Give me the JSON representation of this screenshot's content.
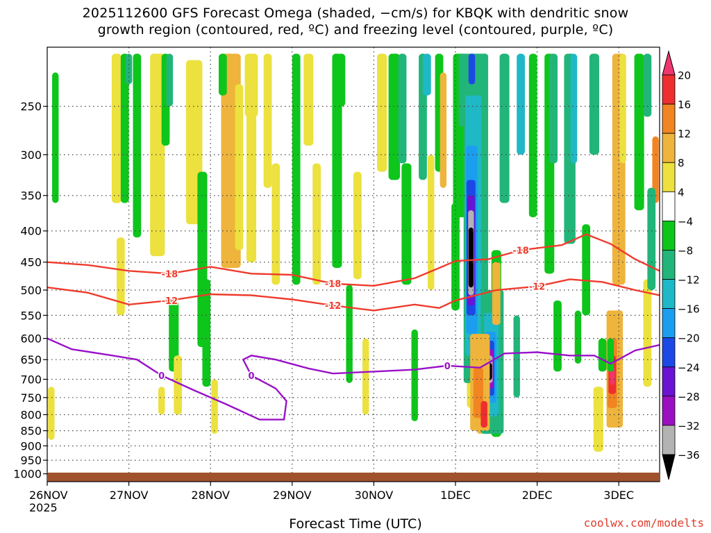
{
  "title_line1": "2025112600 GFS Forecast Omega (shaded, −cm/s) for KBQK with dendritic snow",
  "title_line2": "growth region (contoured, red, ºC) and freezing level (contoured, purple, ºC)",
  "xlabel": "Forecast Time (UTC)",
  "credit": "coolwx.com/modelts",
  "colors": {
    "red_contour": "#ef3b2c",
    "purple_contour": "#9911c8",
    "ground": "#a0522d",
    "grid": "#444444"
  },
  "chart_data": {
    "type": "heatmap",
    "title": "2025112600 GFS Forecast Omega (shaded, −cm/s) for KBQK with dendritic snow growth region (contoured, red, ºC) and freezing level (contoured, purple, ºC)",
    "xlabel": "Forecast Time (UTC)",
    "ylabel": "",
    "x_ticks": [
      "26NOV\n2025",
      "27NOV",
      "28NOV",
      "29NOV",
      "30NOV",
      "1DEC",
      "2DEC",
      "3DEC"
    ],
    "y_ticks": [
      250,
      300,
      350,
      400,
      450,
      500,
      550,
      600,
      650,
      700,
      750,
      800,
      850,
      900,
      950,
      1000
    ],
    "y_scale": "log-pressure",
    "x_range_days": [
      0,
      7.5
    ],
    "y_range_hpa": [
      200,
      1030
    ],
    "grid": true,
    "colorbar": {
      "levels": [
        20,
        16,
        12,
        8,
        4,
        -4,
        -8,
        -12,
        -16,
        -20,
        -24,
        -28,
        -32,
        -36
      ],
      "colors": [
        "#f0366e",
        "#ee2e2f",
        "#f18522",
        "#eeb43b",
        "#ece13e",
        "#ffffff",
        "#0ec51c",
        "#22b57a",
        "#1fb8c6",
        "#1b9ef0",
        "#1c49e6",
        "#6b13d2",
        "#9b0fc2",
        "#b3b3b3",
        "#000000"
      ]
    },
    "contours": [
      {
        "label": "-18",
        "color": "red",
        "points": [
          [
            0.0,
            450
          ],
          [
            0.5,
            455
          ],
          [
            1.0,
            465
          ],
          [
            1.5,
            470
          ],
          [
            2.0,
            458
          ],
          [
            2.5,
            470
          ],
          [
            3.0,
            472
          ],
          [
            3.5,
            488
          ],
          [
            4.0,
            492
          ],
          [
            4.5,
            478
          ],
          [
            4.8,
            460
          ],
          [
            5.0,
            448
          ],
          [
            5.4,
            445
          ],
          [
            5.8,
            430
          ],
          [
            6.3,
            422
          ],
          [
            6.6,
            405
          ],
          [
            6.9,
            420
          ],
          [
            7.2,
            445
          ],
          [
            7.5,
            465
          ]
        ]
      },
      {
        "label": "-12",
        "color": "red",
        "points": [
          [
            0.0,
            495
          ],
          [
            0.5,
            505
          ],
          [
            1.0,
            528
          ],
          [
            1.5,
            520
          ],
          [
            2.0,
            508
          ],
          [
            2.5,
            510
          ],
          [
            3.0,
            518
          ],
          [
            3.5,
            530
          ],
          [
            4.0,
            540
          ],
          [
            4.5,
            528
          ],
          [
            4.8,
            535
          ],
          [
            5.0,
            520
          ],
          [
            5.5,
            500
          ],
          [
            6.0,
            493
          ],
          [
            6.4,
            480
          ],
          [
            6.8,
            485
          ],
          [
            7.2,
            500
          ],
          [
            7.5,
            510
          ]
        ]
      },
      {
        "label": "0",
        "color": "purple",
        "points": [
          [
            0.0,
            600
          ],
          [
            0.3,
            625
          ],
          [
            0.8,
            640
          ],
          [
            1.1,
            650
          ],
          [
            1.4,
            690
          ],
          [
            1.8,
            730
          ],
          [
            2.2,
            770
          ],
          [
            2.6,
            815
          ],
          [
            2.9,
            815
          ],
          [
            2.93,
            760
          ],
          [
            2.8,
            725
          ],
          [
            2.5,
            690
          ],
          [
            2.4,
            650
          ],
          [
            2.5,
            640
          ],
          [
            2.8,
            650
          ],
          [
            3.2,
            672
          ],
          [
            3.5,
            685
          ],
          [
            4.0,
            680
          ],
          [
            4.5,
            675
          ],
          [
            4.9,
            665
          ],
          [
            5.3,
            670
          ],
          [
            5.6,
            635
          ],
          [
            6.0,
            632
          ],
          [
            6.4,
            640
          ],
          [
            6.7,
            640
          ],
          [
            6.9,
            660
          ],
          [
            7.2,
            628
          ],
          [
            7.5,
            615
          ]
        ]
      }
    ]
  }
}
